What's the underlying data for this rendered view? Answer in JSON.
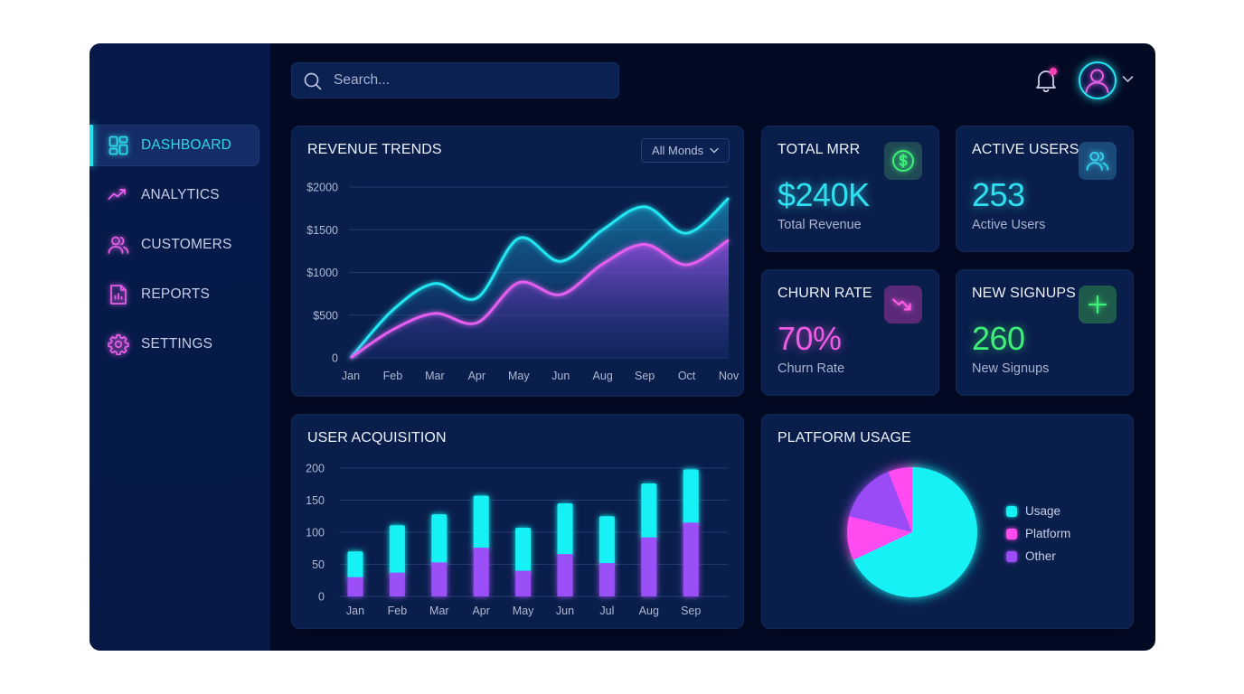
{
  "sidebar": {
    "items": [
      {
        "label": "DASHBOARD",
        "icon": "dashboard-grid-icon",
        "active": true
      },
      {
        "label": "ANALYTICS",
        "icon": "trending-up-icon",
        "active": false
      },
      {
        "label": "CUSTOMERS",
        "icon": "users-icon",
        "active": false
      },
      {
        "label": "REPORTS",
        "icon": "report-file-icon",
        "active": false
      },
      {
        "label": "SETTINGS",
        "icon": "gear-icon",
        "active": false
      }
    ]
  },
  "header": {
    "search": {
      "placeholder": "Search...",
      "value": ""
    },
    "notifications": {
      "icon": "bell-icon",
      "has_unread": true
    },
    "user": {
      "icon": "user-avatar-icon",
      "menu_icon": "chevron-down-icon"
    }
  },
  "revenue_trends": {
    "title": "REVENUE TRENDS",
    "filter": {
      "selected": "All Monds"
    }
  },
  "kpis": [
    {
      "title": "TOTAL MRR",
      "value": "$240K",
      "subtitle": "Total Revenue",
      "icon": "dollar-circle-icon",
      "color": "#2ee0f0"
    },
    {
      "title": "ACTIVE USERS",
      "value": "253",
      "subtitle": "Active Users",
      "icon": "users-icon",
      "color": "#2ee0f0"
    },
    {
      "title": "CHURN RATE",
      "value": "70%",
      "subtitle": "Churn Rate",
      "icon": "trending-down-icon",
      "color": "#f05be6"
    },
    {
      "title": "NEW SIGNUPS",
      "value": "260",
      "subtitle": "New Signups",
      "icon": "plus-icon",
      "color": "#3ef07a"
    }
  ],
  "user_acquisition": {
    "title": "USER ACQUISITION"
  },
  "platform_usage": {
    "title": "PLATFORM USAGE",
    "legend": [
      {
        "label": "Usage",
        "color": "#14f1f5"
      },
      {
        "label": "Platform",
        "color": "#ff4bf0"
      },
      {
        "label": "Other",
        "color": "#9a4cf5"
      }
    ]
  },
  "chart_data": [
    {
      "type": "line",
      "title": "REVENUE TRENDS",
      "categories": [
        "Jan",
        "Feb",
        "Mar",
        "Apr",
        "May",
        "Jun",
        "Aug",
        "Sep",
        "Oct",
        "Nov"
      ],
      "series": [
        {
          "name": "Series 1 (cyan)",
          "color": "#22e6f2",
          "values": [
            0,
            560,
            870,
            700,
            1400,
            1130,
            1500,
            1770,
            1460,
            1870
          ]
        },
        {
          "name": "Series 2 (magenta)",
          "color": "#e45ff0",
          "values": [
            0,
            330,
            520,
            410,
            880,
            740,
            1100,
            1330,
            1090,
            1380
          ]
        }
      ],
      "yticks": [
        "0",
        "$500",
        "$1000",
        "$1500",
        "$2000"
      ],
      "ylim": [
        0,
        2000
      ],
      "xlabel": "",
      "ylabel": "",
      "grid": true,
      "area_fill": true
    },
    {
      "type": "bar",
      "stacked": true,
      "title": "USER ACQUISITION",
      "categories": [
        "Jan",
        "Feb",
        "Mar",
        "Apr",
        "May",
        "Jun",
        "Jul",
        "Aug",
        "Sep"
      ],
      "series": [
        {
          "name": "Bottom (purple)",
          "color": "#9b4ff6",
          "values": [
            30,
            37,
            53,
            76,
            40,
            66,
            52,
            92,
            115
          ]
        },
        {
          "name": "Top (cyan)",
          "color": "#14f1f5",
          "values": [
            40,
            74,
            75,
            81,
            67,
            79,
            73,
            84,
            83
          ]
        }
      ],
      "totals": [
        70,
        111,
        128,
        157,
        107,
        145,
        125,
        176,
        198
      ],
      "yticks": [
        "0",
        "50",
        "100",
        "150",
        "200"
      ],
      "ylim": [
        0,
        200
      ],
      "grid": true
    },
    {
      "type": "pie",
      "title": "PLATFORM USAGE",
      "labels": [
        "Usage",
        "Platform",
        "Other",
        "Platform"
      ],
      "values": [
        68,
        11,
        15,
        6
      ],
      "colors": [
        "#14f1f5",
        "#ff4bf0",
        "#9a4cf5",
        "#ff4bf0"
      ],
      "legend": [
        "Usage",
        "Platform",
        "Other"
      ],
      "legend_position": "right"
    }
  ]
}
